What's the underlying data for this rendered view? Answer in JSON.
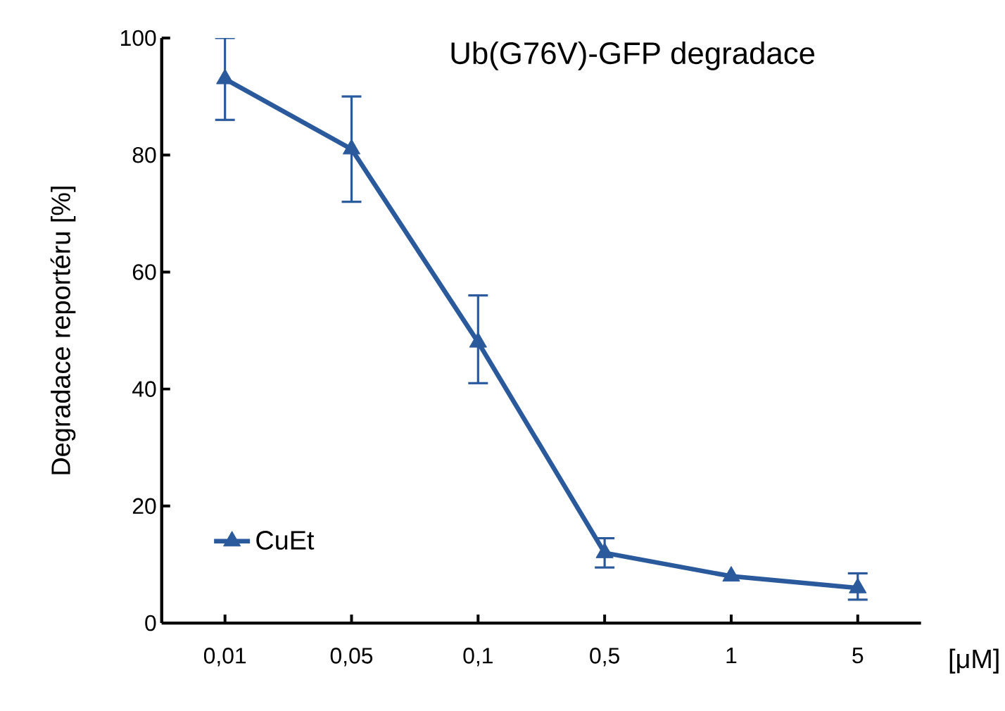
{
  "chart_data": {
    "type": "line",
    "title": "Ub(G76V)-GFP degradace",
    "xlabel": "[μM]",
    "ylabel": "Degradace reportéru [%]",
    "categories": [
      "0,01",
      "0,05",
      "0,1",
      "0,5",
      "1",
      "5"
    ],
    "series": [
      {
        "name": "CuEt",
        "color": "#2a5a9c",
        "values": [
          93,
          81,
          48,
          12,
          8,
          6
        ],
        "errors": [
          [
            86,
            100
          ],
          [
            72,
            90
          ],
          [
            41,
            56
          ],
          [
            9.5,
            14.5
          ],
          null,
          [
            4,
            8.5
          ]
        ]
      }
    ],
    "ylim": [
      0,
      100
    ],
    "yticks": [
      0,
      20,
      40,
      60,
      80,
      100
    ],
    "grid": false,
    "legend": "bottom left",
    "marker": "triangle",
    "line_style": "solid"
  }
}
